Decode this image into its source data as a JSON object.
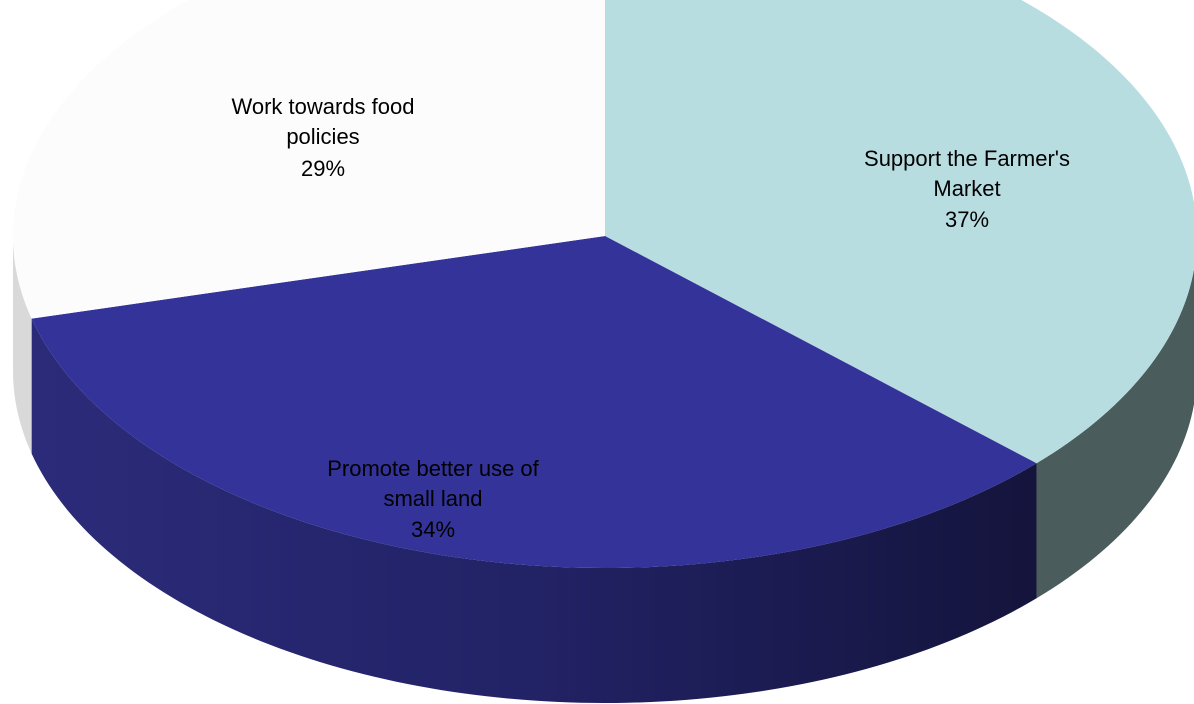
{
  "chart_data": {
    "type": "pie",
    "three_d": true,
    "title": "",
    "slices": [
      {
        "label_lines": [
          "Support the Farmer's",
          "Market"
        ],
        "percent_label": "37%",
        "value": 37,
        "color": "#B8DDE1",
        "side_color": "#4A5C5C"
      },
      {
        "label_lines": [
          "Promote better use of",
          "small land"
        ],
        "percent_label": "34%",
        "value": 34,
        "color": "#333399",
        "side_color": "#1E1E5A"
      },
      {
        "label_lines": [
          "Work towards food",
          "policies"
        ],
        "percent_label": "29%",
        "value": 29,
        "color": "#FCFCFC",
        "side_color": "#D9D9D9"
      }
    ],
    "legend": "none"
  }
}
